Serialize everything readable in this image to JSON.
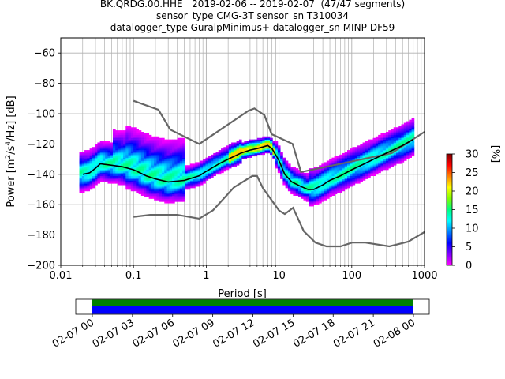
{
  "title_lines": [
    "BK.QRDG.00.HHE   2019-02-06 -- 2019-02-07  (47/47 segments)",
    "sensor_type CMG-3T sensor_sn T310034",
    "datalogger_type GuralpMinimus+ datalogger_sn MINP-DF59"
  ],
  "chart_data": {
    "type": "heatmap",
    "xlabel": "Period [s]",
    "ylabel": "Power [m²/s⁴/Hz] [dB]",
    "xscale": "log",
    "xlim": [
      0.01,
      1000
    ],
    "ylim": [
      -200,
      -50
    ],
    "xticks": [
      0.01,
      0.1,
      1,
      10,
      100,
      1000
    ],
    "xtick_labels": [
      "0.01",
      "0.1",
      "1",
      "10",
      "100",
      "1000"
    ],
    "yticks": [
      -200,
      -180,
      -160,
      -140,
      -120,
      -100,
      -80,
      -60
    ],
    "ytick_labels": [
      "−200",
      "−180",
      "−160",
      "−140",
      "−120",
      "−100",
      "−80",
      "−60"
    ],
    "grid": true,
    "colorbar": {
      "label": "[%]",
      "range": [
        0,
        30
      ],
      "ticks": [
        0,
        5,
        10,
        15,
        20,
        25,
        30
      ],
      "colors": [
        "#ffffff",
        "#ff00ff",
        "#8000ff",
        "#0000ff",
        "#0080ff",
        "#00ffff",
        "#00ff80",
        "#80ff00",
        "#ffff00",
        "#ff8000",
        "#ff0000",
        "#800000"
      ]
    },
    "noise_models": {
      "high": {
        "period": [
          0.1,
          0.22,
          0.32,
          0.8,
          3.8,
          4.6,
          6.3,
          7.9,
          15.4,
          20,
          354.8,
          1000
        ],
        "power": [
          -91.5,
          -97.4,
          -110.5,
          -120,
          -98,
          -96.5,
          -101,
          -113.5,
          -120,
          -138.5,
          -126,
          -112
        ]
      },
      "low": {
        "period": [
          0.1,
          0.17,
          0.4,
          0.8,
          1.24,
          2.4,
          4.3,
          5,
          6,
          10,
          12,
          15.6,
          21.9,
          31.6,
          45,
          70,
          101,
          154,
          328,
          600,
          1000
        ],
        "power": [
          -168,
          -166.7,
          -166.7,
          -169.2,
          -163.7,
          -148.6,
          -141.1,
          -141.1,
          -149,
          -163.8,
          -166.2,
          -162.1,
          -177.5,
          -185,
          -187.5,
          -187.5,
          -185,
          -185,
          -187.5,
          -184.4,
          -178
        ]
      }
    },
    "mode": {
      "period": [
        0.02,
        0.025,
        0.03,
        0.035,
        0.05,
        0.07,
        0.1,
        0.15,
        0.2,
        0.3,
        0.5,
        0.8,
        1,
        1.5,
        2,
        3,
        4,
        5,
        6,
        7,
        8,
        10,
        12,
        15,
        20,
        25,
        30,
        40,
        50,
        70,
        100,
        150,
        200,
        300,
        500,
        700
      ],
      "power": [
        -140,
        -139,
        -136,
        -133,
        -134,
        -135,
        -137,
        -141,
        -143,
        -145,
        -144,
        -141,
        -138,
        -133,
        -130,
        -126,
        -124,
        -123,
        -122,
        -121,
        -123,
        -131,
        -140,
        -145,
        -148,
        -150,
        -150,
        -147,
        -144,
        -141,
        -137,
        -133,
        -130,
        -126,
        -121,
        -117
      ]
    },
    "timeline": {
      "xtick_labels": [
        "02-07 00",
        "02-07 03",
        "02-07 06",
        "02-07 09",
        "02-07 12",
        "02-07 15",
        "02-07 18",
        "02-07 21",
        "02-08 00"
      ],
      "coverage_colors": [
        "#008000",
        "#0000ff"
      ]
    }
  }
}
